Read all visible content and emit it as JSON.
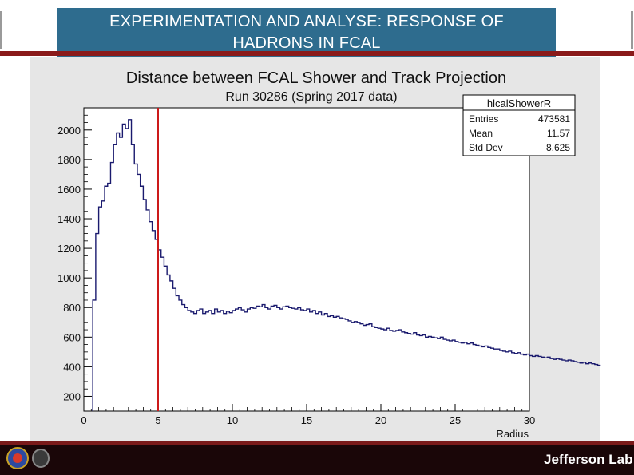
{
  "slide": {
    "title_line1": "EXPERIMENTATION AND ANALYSE: RESPONSE OF",
    "title_line2": "HADRONS IN FCAL",
    "footer_logo": "Jefferson Lab",
    "title_color": "#2e6c8e",
    "footer_color": "#1a0608"
  },
  "chart_data": {
    "type": "histogram",
    "title": "Distance between FCAL Shower and Track Projection",
    "subtitle": "Run 30286 (Spring 2017 data)",
    "xlabel": "Radius",
    "ylabel": "",
    "xlim": [
      0,
      30
    ],
    "ylim": [
      100,
      2150
    ],
    "x_ticks": [
      0,
      5,
      10,
      15,
      20,
      25,
      30
    ],
    "y_ticks": [
      200,
      400,
      600,
      800,
      1000,
      1200,
      1400,
      1600,
      1800,
      2000
    ],
    "line_color": "#1a1a6e",
    "cut_line": {
      "x": 5,
      "color": "#cc1a1a"
    },
    "stats_box": {
      "name": "hlcalShowerR",
      "rows": [
        {
          "label": "Entries",
          "value": "473581"
        },
        {
          "label": "Mean",
          "value": "11.57"
        },
        {
          "label": "Std Dev",
          "value": "8.625"
        }
      ]
    },
    "series": [
      {
        "bin_width": 0.2,
        "x_start": 0.6,
        "values": [
          850,
          1300,
          1480,
          1520,
          1620,
          1640,
          1780,
          1900,
          1980,
          1950,
          2040,
          2010,
          2070,
          1900,
          1770,
          1700,
          1620,
          1530,
          1460,
          1380,
          1320,
          1260,
          1190,
          1140,
          1080,
          1020,
          980,
          930,
          880,
          850,
          820,
          800,
          780,
          770,
          760,
          780,
          790,
          760,
          770,
          780,
          760,
          790,
          770,
          780,
          760,
          775,
          765,
          780,
          790,
          800,
          785,
          770,
          790,
          800,
          795,
          810,
          805,
          820,
          800,
          790,
          810,
          815,
          800,
          790,
          805,
          810,
          800,
          795,
          790,
          800,
          785,
          780,
          790,
          770,
          780,
          760,
          770,
          750,
          760,
          740,
          745,
          735,
          740,
          730,
          725,
          720,
          710,
          700,
          705,
          700,
          690,
          680,
          685,
          690,
          670,
          665,
          660,
          655,
          650,
          660,
          645,
          640,
          645,
          650,
          635,
          630,
          625,
          620,
          630,
          615,
          610,
          615,
          600,
          605,
          600,
          595,
          590,
          600,
          585,
          580,
          575,
          580,
          570,
          565,
          560,
          565,
          555,
          560,
          550,
          545,
          540,
          535,
          540,
          530,
          525,
          520,
          520,
          510,
          505,
          500,
          505,
          495,
          490,
          495,
          485,
          480,
          485,
          475,
          470,
          475,
          470,
          465,
          460,
          465,
          455,
          450,
          455,
          450,
          445,
          440,
          445,
          440,
          435,
          430,
          425,
          430,
          420,
          425,
          420,
          415,
          410
        ]
      }
    ]
  }
}
